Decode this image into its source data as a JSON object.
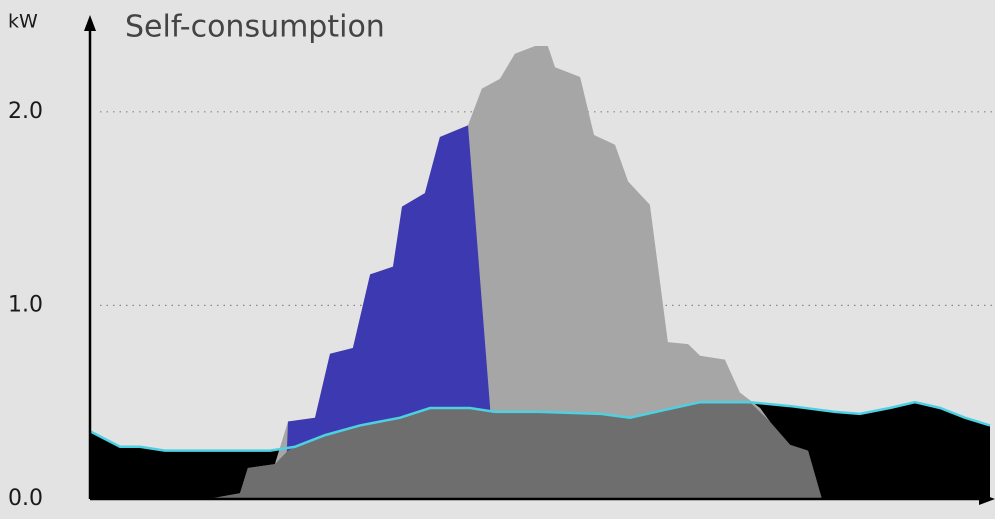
{
  "chart_data": {
    "type": "area",
    "title": "Self-consumption",
    "y_label": "kW",
    "xlim": [
      0,
      24
    ],
    "ylim": [
      0,
      2.5
    ],
    "yticks": [
      {
        "value": 0,
        "label": "0.0"
      },
      {
        "value": 1,
        "label": "1.0"
      },
      {
        "value": 2,
        "label": "2.0"
      }
    ],
    "grid": true,
    "series": [
      {
        "color": "#000000",
        "line_color": "#4dd0e1",
        "x": [
          0,
          0.8,
          1.33,
          2,
          4.8,
          5.47,
          6.27,
          7.2,
          8.27,
          9.07,
          10.13,
          10.8,
          12,
          13.6,
          14.4,
          15.33,
          16.27,
          17.6,
          18.67,
          19.87,
          20.53,
          21.33,
          22,
          22.67,
          23.33,
          24
        ],
        "values": [
          0.35,
          0.27,
          0.27,
          0.25,
          0.25,
          0.27,
          0.33,
          0.38,
          0.42,
          0.47,
          0.47,
          0.45,
          0.45,
          0.44,
          0.42,
          0.46,
          0.5,
          0.5,
          0.48,
          0.45,
          0.44,
          0.47,
          0.5,
          0.47,
          0.42,
          0.38
        ]
      },
      {
        "color": "#a6a6a6",
        "x": [
          3.15,
          4,
          4.21,
          4.93,
          5.28,
          6,
          6.4,
          7.01,
          7.47,
          8.08,
          8.32,
          8.93,
          9.33,
          10.08,
          10.45,
          10.93,
          11.33,
          11.87,
          12.21,
          12.4,
          13.07,
          13.44,
          14,
          14.35,
          14.93,
          15.41,
          15.95,
          16.27,
          16.93,
          17.33,
          17.87,
          18.13
        ],
        "values": [
          0,
          0.03,
          0.16,
          0.18,
          0.4,
          0.42,
          0.75,
          0.78,
          1.16,
          1.2,
          1.51,
          1.58,
          1.87,
          1.93,
          2.12,
          2.17,
          2.3,
          2.34,
          2.34,
          2.23,
          2.18,
          1.88,
          1.83,
          1.64,
          1.52,
          0.81,
          0.8,
          0.74,
          0.72,
          0.55,
          0.47,
          0.4
        ]
      },
      {
        "color": "#3d39b0",
        "x": [
          5.2,
          5.28,
          6,
          6.4,
          7.01,
          7.47,
          8.08,
          8.32,
          8.93,
          9.33,
          10.08,
          10.67
        ],
        "values": [
          0,
          0.4,
          0.42,
          0.75,
          0.78,
          1.16,
          1.2,
          1.51,
          1.58,
          1.87,
          1.93,
          0.47
        ]
      },
      {
        "color": "#6e6e6e",
        "x": [
          3.15,
          4,
          4.21,
          4.93,
          5.28,
          5.47,
          6.27,
          7.2,
          8.27,
          9.07,
          10.13,
          10.8,
          12,
          13.6,
          14.4,
          15.33,
          16.27,
          17.6,
          18.13,
          18.67,
          19.15,
          19.52
        ],
        "values": [
          0,
          0.03,
          0.16,
          0.18,
          0.25,
          0.27,
          0.33,
          0.38,
          0.42,
          0.47,
          0.47,
          0.45,
          0.45,
          0.44,
          0.42,
          0.46,
          0.5,
          0.5,
          0.4,
          0.28,
          0.25,
          0
        ]
      }
    ]
  }
}
